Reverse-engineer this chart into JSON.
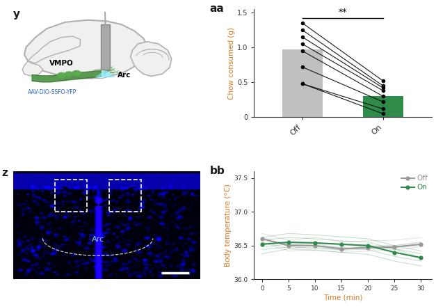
{
  "panel_aa": {
    "label": "aa",
    "bar_off_height": 0.97,
    "bar_on_height": 0.3,
    "bar_off_color": "#c0c0c0",
    "bar_on_color": "#2e8b4a",
    "off_points": [
      1.35,
      1.25,
      1.15,
      1.05,
      0.95,
      0.72,
      0.48,
      0.48
    ],
    "on_points": [
      0.52,
      0.45,
      0.42,
      0.38,
      0.3,
      0.22,
      0.12,
      0.05
    ],
    "ylabel": "Chow consumed (g)",
    "xtick_labels": [
      "Off",
      "On"
    ],
    "ylim": [
      0,
      1.55
    ],
    "yticks": [
      0,
      0.5,
      1.0,
      1.5
    ],
    "significance": "**"
  },
  "panel_bb": {
    "label": "bb",
    "ylabel": "Body temperature (°C)",
    "xlabel": "Time (min)",
    "xticks": [
      0,
      5,
      10,
      15,
      20,
      25,
      30
    ],
    "ylim": [
      36.0,
      37.6
    ],
    "yticks": [
      36.0,
      36.5,
      37.0,
      37.5
    ],
    "off_color": "#999999",
    "on_color": "#2e8b4a",
    "off_mean": [
      36.6,
      36.5,
      36.5,
      36.45,
      36.47,
      36.48,
      36.52
    ],
    "on_mean": [
      36.52,
      36.55,
      36.54,
      36.52,
      36.5,
      36.4,
      36.32
    ],
    "off_individuals": [
      [
        36.6,
        36.52,
        36.55,
        36.5,
        36.5,
        36.5,
        36.55
      ],
      [
        36.68,
        36.58,
        36.62,
        36.56,
        36.57,
        36.58,
        36.62
      ],
      [
        36.55,
        36.42,
        36.44,
        36.4,
        36.42,
        36.44,
        36.48
      ],
      [
        36.62,
        36.52,
        36.52,
        36.47,
        36.48,
        36.5,
        36.55
      ],
      [
        36.55,
        36.46,
        36.48,
        36.43,
        36.45,
        36.47,
        36.5
      ]
    ],
    "on_individuals": [
      [
        36.58,
        36.62,
        36.6,
        36.57,
        36.55,
        36.45,
        36.38
      ],
      [
        36.62,
        36.68,
        36.66,
        36.63,
        36.6,
        36.5,
        36.42
      ],
      [
        36.38,
        36.45,
        36.43,
        36.4,
        36.37,
        36.27,
        36.2
      ],
      [
        36.48,
        36.52,
        36.5,
        36.47,
        36.44,
        36.34,
        36.27
      ],
      [
        36.44,
        36.48,
        36.46,
        36.44,
        36.5,
        36.45,
        36.32
      ]
    ],
    "legend_off": "Off",
    "legend_on": "On"
  },
  "panel_y": {
    "label": "y",
    "vmpo_text": "VMPO",
    "arc_text": "Arc",
    "aav_text": "AAV-DIO-SSFO-YFP"
  },
  "panel_z": {
    "label": "z"
  },
  "label_color": "#1a1a1a",
  "axis_label_color": "#e07820",
  "tick_label_color": "#e07820",
  "background_color": "#ffffff"
}
